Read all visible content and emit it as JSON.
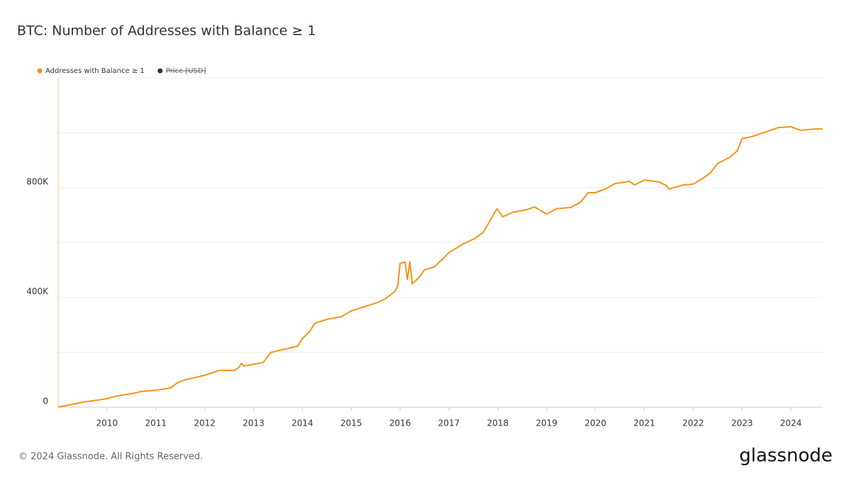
{
  "chart_data": {
    "type": "line",
    "title": "BTC: Number of Addresses with Balance ≥ 1",
    "x": [
      2009.0,
      2009.5,
      2010.0,
      2010.2,
      2010.5,
      2010.7,
      2011.0,
      2011.3,
      2011.45,
      2011.6,
      2012.0,
      2012.3,
      2012.6,
      2012.7,
      2012.75,
      2012.8,
      2013.2,
      2013.35,
      2013.5,
      2013.9,
      2014.0,
      2014.15,
      2014.25,
      2014.5,
      2014.8,
      2015.0,
      2015.5,
      2015.7,
      2015.9,
      2015.95,
      2016.0,
      2016.1,
      2016.15,
      2016.2,
      2016.25,
      2016.4,
      2016.5,
      2016.7,
      2017.0,
      2017.3,
      2017.5,
      2017.7,
      2017.9,
      2017.98,
      2018.1,
      2018.3,
      2018.6,
      2018.75,
      2019.0,
      2019.2,
      2019.5,
      2019.7,
      2019.85,
      2020.0,
      2020.2,
      2020.4,
      2020.7,
      2020.8,
      2021.0,
      2021.3,
      2021.45,
      2021.5,
      2021.8,
      2022.0,
      2022.2,
      2022.35,
      2022.5,
      2022.75,
      2022.9,
      2023.0,
      2023.2,
      2023.5,
      2023.75,
      2024.0,
      2024.2,
      2024.5,
      2024.65
    ],
    "series": [
      {
        "name": "Addresses with Balance ≥ 1",
        "color": "#f7931a",
        "values": [
          0,
          18000,
          31000,
          41000,
          49000,
          57000,
          62000,
          70000,
          90000,
          100000,
          116000,
          134000,
          134000,
          145000,
          160000,
          150000,
          163000,
          199000,
          206000,
          222000,
          250000,
          276000,
          305000,
          320000,
          330000,
          351000,
          379000,
          395000,
          423000,
          441000,
          524000,
          529000,
          465000,
          529000,
          449000,
          475000,
          501000,
          511000,
          563000,
          596000,
          612000,
          637000,
          697000,
          723000,
          694000,
          710000,
          720000,
          730000,
          704000,
          723000,
          728000,
          748000,
          782000,
          782000,
          795000,
          815000,
          823000,
          810000,
          828000,
          821000,
          808000,
          795000,
          810000,
          813000,
          834000,
          854000,
          888000,
          911000,
          934000,
          978000,
          986000,
          1004000,
          1019000,
          1022000,
          1009000,
          1014000,
          1014000
        ]
      }
    ],
    "inactive_legend": {
      "name": "Price [USD]",
      "color": "#333333"
    },
    "xlim": [
      2009.0,
      2024.65
    ],
    "xticks": [
      2010,
      2011,
      2012,
      2013,
      2014,
      2015,
      2016,
      2017,
      2018,
      2019,
      2020,
      2021,
      2022,
      2023,
      2024
    ],
    "ylim": [
      0,
      1200000
    ],
    "yticks": [
      0,
      {
        "value": 400000,
        "label": "400K"
      },
      {
        "value": 800000,
        "label": "800K"
      }
    ],
    "ygrid": [
      0,
      200000,
      400000,
      600000,
      800000,
      1000000,
      1200000
    ],
    "grid": true
  },
  "footer": {
    "copyright": "© 2024 Glassnode. All Rights Reserved.",
    "logo": "glassnode"
  }
}
